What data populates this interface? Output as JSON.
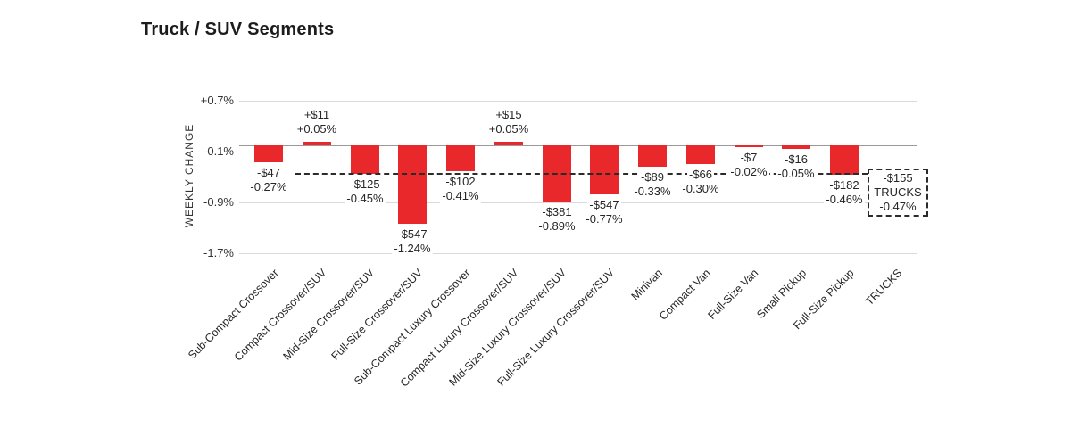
{
  "title": "Truck / SUV Segments",
  "chart_data": {
    "type": "bar",
    "title": "Truck / SUV Segments",
    "ylabel": "WEEKLY CHANGE",
    "xlabel": "",
    "ylim": [
      -1.7,
      0.7
    ],
    "grid": true,
    "legend": "none",
    "bar_color": "#e8282a",
    "y_ticks": [
      {
        "label": "+0.7%",
        "value": 0.7
      },
      {
        "label": "-0.1%",
        "value": -0.1
      },
      {
        "label": "-0.9%",
        "value": -0.9
      },
      {
        "label": "-1.7%",
        "value": -1.7
      }
    ],
    "bars": [
      {
        "category": "Sub-Compact Crossover",
        "dollar": "-$47",
        "pct_label": "-0.27%",
        "pct": -0.27
      },
      {
        "category": "Compact Crossover/SUV",
        "dollar": "+$11",
        "pct_label": "+0.05%",
        "pct": 0.05
      },
      {
        "category": "Mid-Size Crossover/SUV",
        "dollar": "-$125",
        "pct_label": "-0.45%",
        "pct": -0.45
      },
      {
        "category": "Full-Size Crossover/SUV",
        "dollar": "-$547",
        "pct_label": "-1.24%",
        "pct": -1.24
      },
      {
        "category": "Sub-Compact Luxury Crossover",
        "dollar": "-$102",
        "pct_label": "-0.41%",
        "pct": -0.41
      },
      {
        "category": "Compact Luxury Crossover/SUV",
        "dollar": "+$15",
        "pct_label": "+0.05%",
        "pct": 0.05
      },
      {
        "category": "Mid-Size Luxury Crossover/SUV",
        "dollar": "-$381",
        "pct_label": "-0.89%",
        "pct": -0.89
      },
      {
        "category": "Full-Size Luxury Crossover/SUV",
        "dollar": "-$547",
        "pct_label": "-0.77%",
        "pct": -0.77
      },
      {
        "category": "Minivan",
        "dollar": "-$89",
        "pct_label": "-0.33%",
        "pct": -0.33
      },
      {
        "category": "Compact Van",
        "dollar": "-$66",
        "pct_label": "-0.30%",
        "pct": -0.3
      },
      {
        "category": "Full-Size Van",
        "dollar": "-$7",
        "pct_label": "-0.02%",
        "pct": -0.02
      },
      {
        "category": "Small Pickup",
        "dollar": "-$16",
        "pct_label": "-0.05%",
        "pct": -0.05
      },
      {
        "category": "Full-Size Pickup",
        "dollar": "-$182",
        "pct_label": "-0.46%",
        "pct": -0.46
      }
    ],
    "reference": {
      "category": "TRUCKS",
      "dollar": "-$155",
      "box_label": "TRUCKS",
      "pct_label": "-0.47%",
      "pct": -0.47,
      "style": "dashed-line-and-box"
    }
  }
}
